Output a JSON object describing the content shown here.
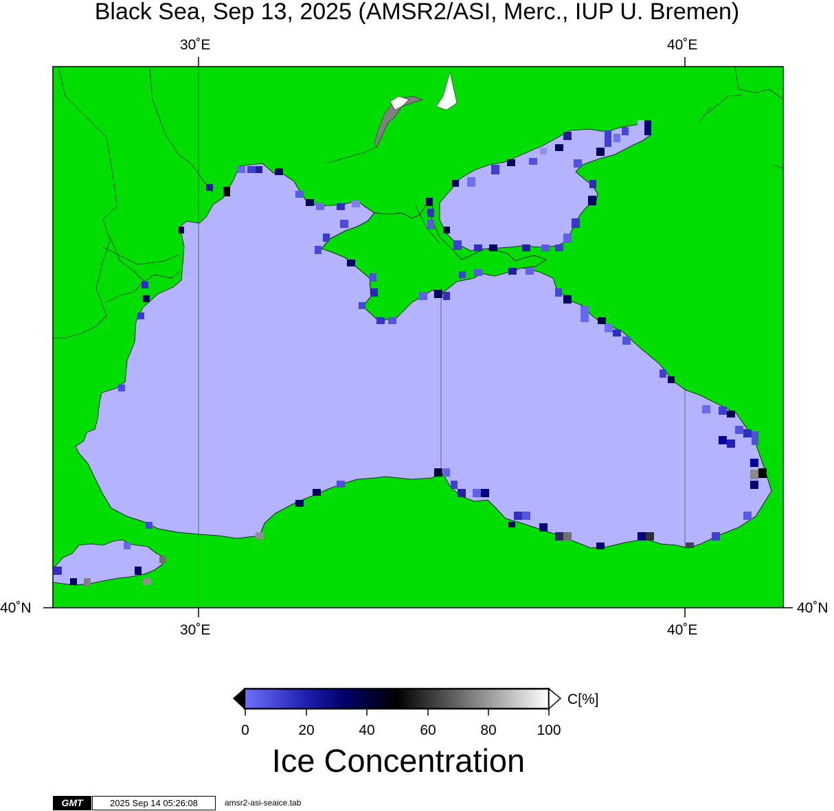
{
  "title": "Black Sea, Sep 13, 2025 (AMSR2/ASI, Merc., IUP U. Bremen)",
  "map": {
    "top_lon_labels": [
      "30˚E",
      "40˚E"
    ],
    "bottom_lon_labels": [
      "30˚E",
      "40˚E"
    ],
    "left_lat_label": "40˚N",
    "right_lat_label": "40˚N",
    "land_color": "#00dd00",
    "ice_free_water_color": "#b3b3ff",
    "frame_color": "#000000"
  },
  "colorbar": {
    "ticks": [
      "0",
      "20",
      "40",
      "60",
      "80",
      "100"
    ],
    "unit": "C[%]",
    "colors": [
      "#7070ff",
      "#00008a",
      "#000000",
      "#ffffff"
    ],
    "label": "Ice Concentration"
  },
  "footer": {
    "logo": "GMT",
    "timestamp": "2025 Sep 14 05:26:08",
    "file": "amsr2-asi-seaice.tab"
  }
}
